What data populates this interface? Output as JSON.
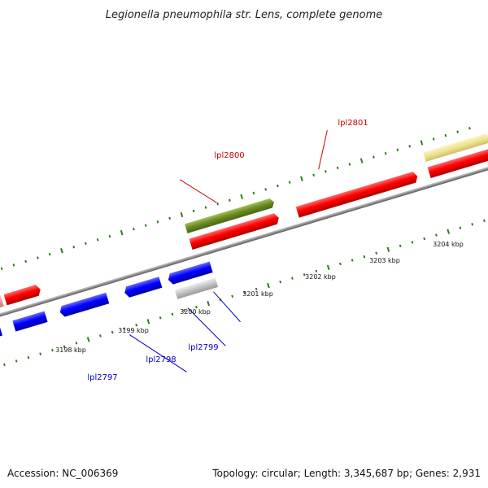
{
  "title": "Legionella pneumophila str. Lens, complete genome",
  "footer": {
    "accession": "Accession: NC_006369",
    "summary": "Topology: circular; Length: 3,345,687 bp; Genes: 2,931"
  },
  "colors": {
    "background": "#ffffff",
    "backbone": "#8c8c8c",
    "tick": "#2e7d1e",
    "forward_gene": "#ff0000",
    "reverse_gene": "#0000ff",
    "highlight_gene": "#6b8e23",
    "pseudo_gene": "#c8c8c8",
    "yellow_feature": "#efe28e",
    "forward_label": "#cc0000",
    "reverse_label": "#0000cc"
  },
  "axis": {
    "unit": "kbp",
    "labels": [
      "3198 kbp",
      "3199 kbp",
      "3200 kbp",
      "3201 kbp",
      "3202 kbp",
      "3203 kbp",
      "3204 kbp"
    ]
  },
  "gene_labels": [
    {
      "name": "lpl2800",
      "strand": "forward"
    },
    {
      "name": "lpl2801",
      "strand": "forward"
    },
    {
      "name": "lpl2797",
      "strand": "reverse"
    },
    {
      "name": "lpl2798",
      "strand": "reverse"
    },
    {
      "name": "lpl2799",
      "strand": "reverse"
    }
  ]
}
